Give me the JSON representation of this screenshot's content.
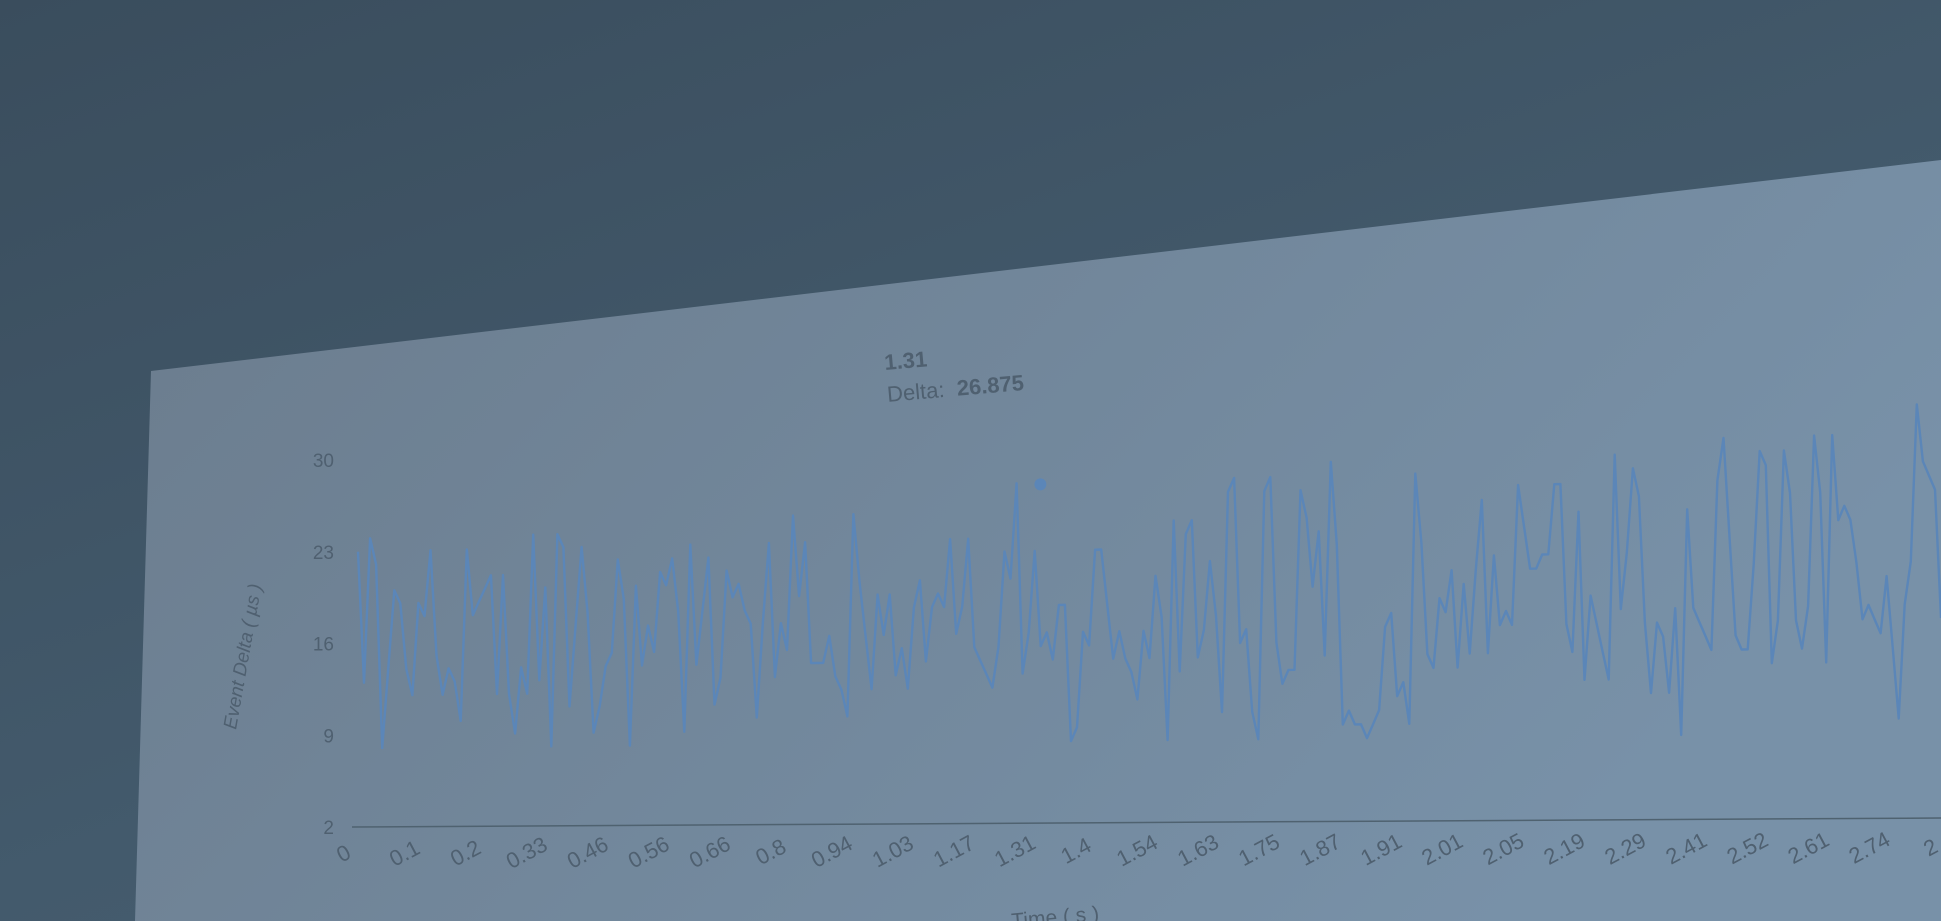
{
  "chart_data": {
    "type": "line",
    "xlabel": "Time ( s )",
    "ylabel": "Event Delta ( µs )",
    "yticks": [
      "2",
      "9",
      "16",
      "23",
      "30"
    ],
    "ylim": [
      2,
      30
    ],
    "xticks": [
      "0",
      "0.1",
      "0.2",
      "0.33",
      "0.46",
      "0.56",
      "0.66",
      "0.8",
      "0.94",
      "1.03",
      "1.17",
      "1.31",
      "1.4",
      "1.54",
      "1.63",
      "1.75",
      "1.87",
      "1.91",
      "2.01",
      "2.05",
      "2.19",
      "2.29",
      "2.41",
      "2.52",
      "2.61",
      "2.74",
      "2"
    ],
    "grid": false,
    "legend": "none",
    "line_color": "#5b86b8",
    "tooltip": {
      "title": "1.31",
      "label": "Delta:",
      "value": "26.875",
      "x": 1.31,
      "y": 26.875
    },
    "series": [
      {
        "values": [
          23,
          13,
          24,
          22,
          8,
          14,
          20,
          19,
          14,
          12,
          19,
          18,
          23,
          15,
          12,
          14,
          13,
          10,
          23,
          18,
          19,
          20,
          21,
          12,
          21,
          12,
          9,
          14,
          12,
          24,
          13,
          20,
          8,
          24,
          23,
          11,
          17,
          23,
          18,
          9,
          11,
          14,
          15,
          22,
          19,
          8,
          20,
          14,
          17,
          15,
          21,
          20,
          22,
          18,
          9,
          23,
          14,
          18,
          22,
          11,
          13,
          21,
          19,
          20,
          18,
          17,
          10,
          17,
          23,
          13,
          17,
          15,
          25,
          19,
          23,
          14,
          14,
          14,
          16,
          13,
          12,
          10,
          25,
          20,
          16,
          12,
          19,
          16,
          19,
          13,
          15,
          12,
          18,
          20,
          14,
          18,
          19,
          18,
          23,
          16,
          18,
          23,
          15,
          14,
          13,
          12,
          15,
          22,
          20,
          27,
          13,
          16,
          22,
          15,
          16,
          14,
          18,
          18,
          8,
          9,
          16,
          15,
          22,
          22,
          18,
          14,
          16,
          14,
          13,
          11,
          16,
          14,
          20,
          17,
          8,
          24,
          13,
          23,
          24,
          14,
          16,
          21,
          17,
          10,
          26,
          27,
          15,
          16,
          10,
          8,
          26,
          27,
          15,
          12,
          13,
          13,
          26,
          24,
          19,
          23,
          14,
          28,
          22,
          9,
          10,
          9,
          9,
          8,
          9,
          10,
          16,
          17,
          11,
          12,
          9,
          27,
          22,
          14,
          13,
          18,
          17,
          20,
          13,
          19,
          14,
          20,
          25,
          14,
          21,
          16,
          17,
          16,
          26,
          23,
          20,
          20,
          21,
          21,
          26,
          26,
          16,
          14,
          24,
          12,
          18,
          16,
          14,
          12,
          28,
          17,
          21,
          27,
          25,
          16,
          11,
          16,
          15,
          11,
          17,
          8,
          24,
          17,
          16,
          15,
          14,
          26,
          29,
          22,
          15,
          14,
          14,
          20,
          28,
          27,
          13,
          16,
          28,
          25,
          16,
          14,
          17,
          29,
          25,
          13,
          29,
          23,
          24,
          23,
          20,
          16,
          17,
          16,
          15,
          19,
          14,
          9,
          17,
          20,
          31,
          27,
          26,
          25,
          16
        ]
      }
    ]
  }
}
